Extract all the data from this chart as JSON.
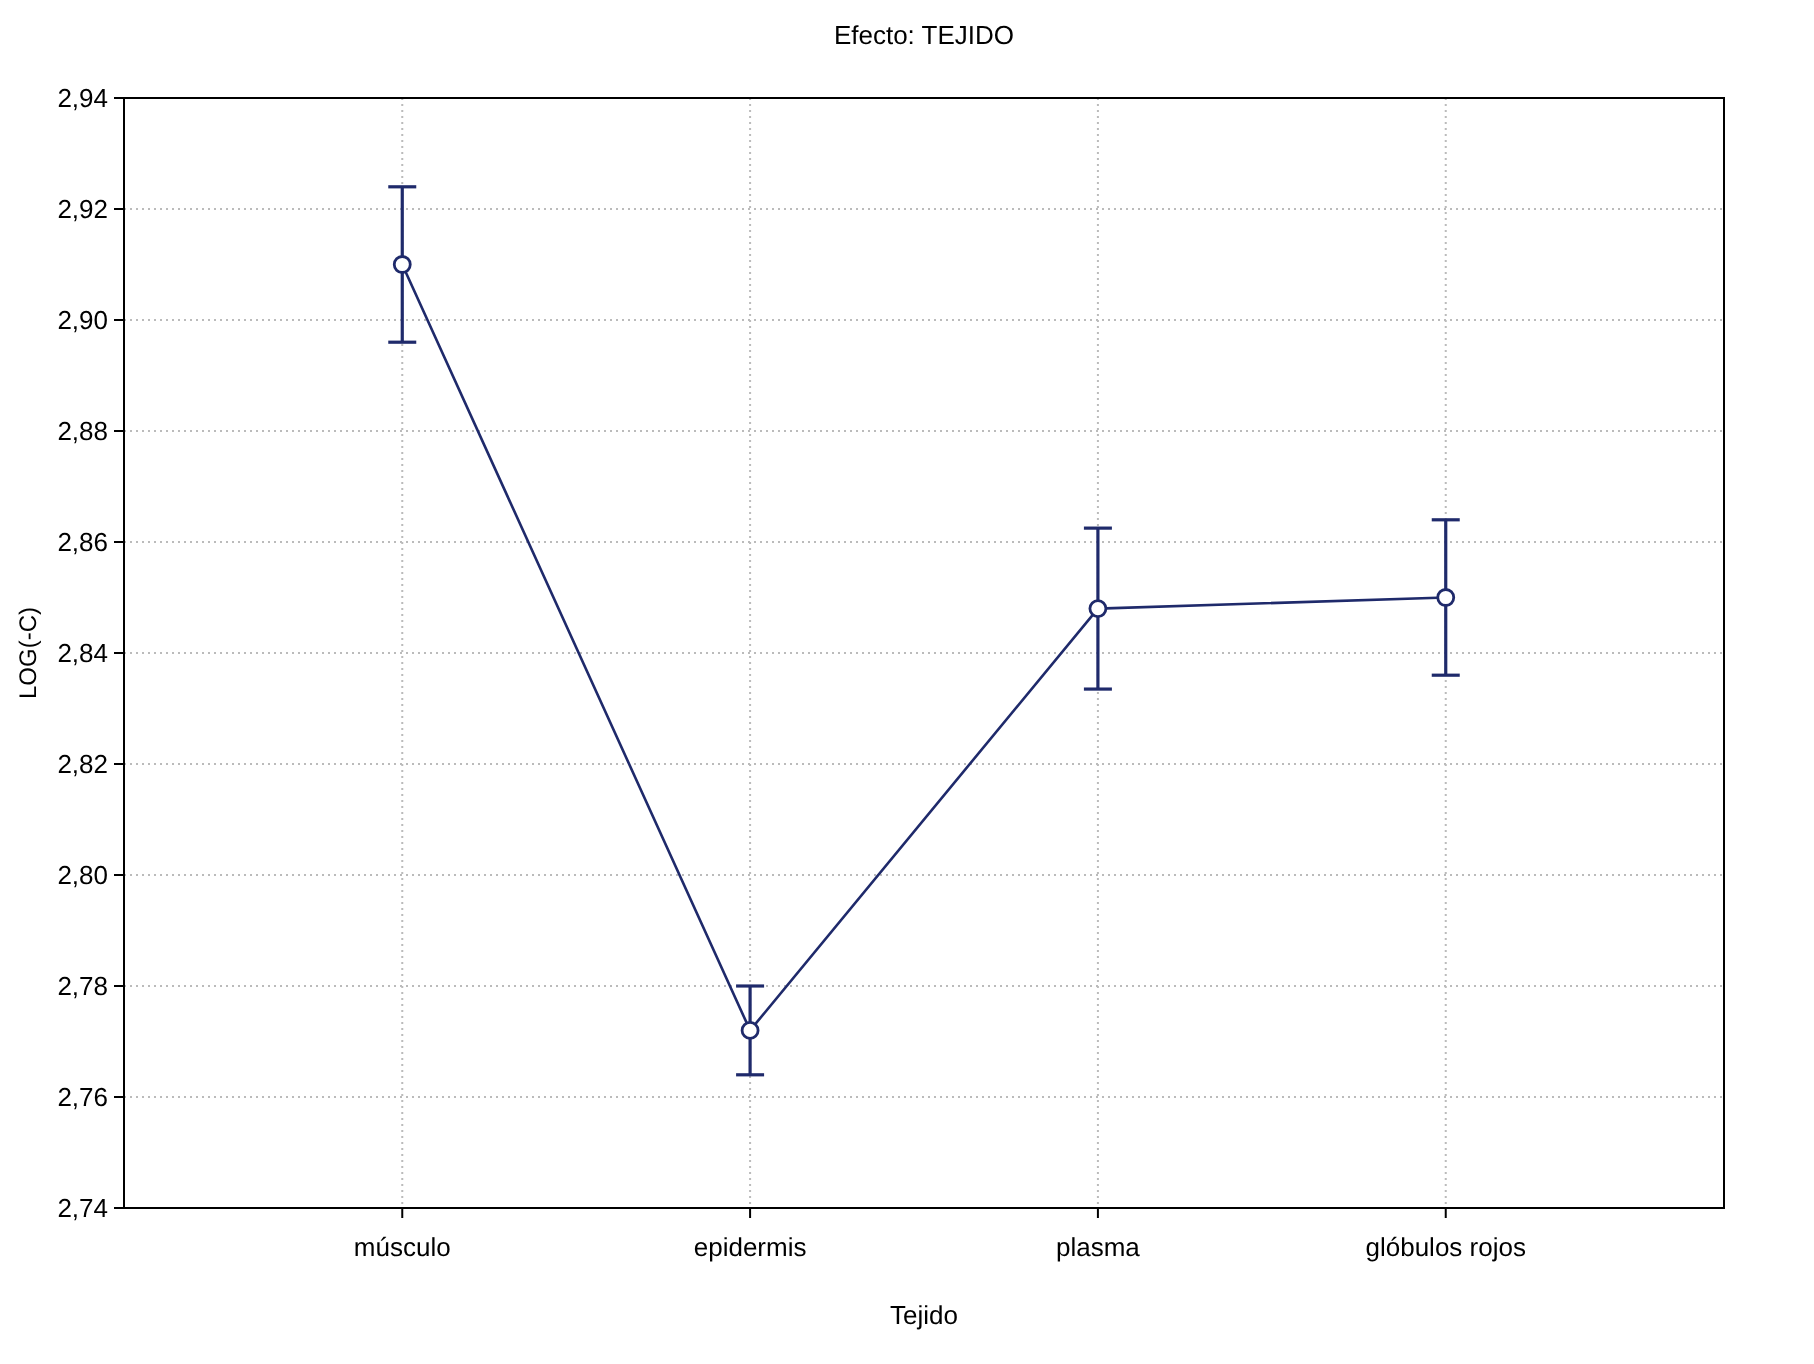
{
  "chart_data": {
    "type": "line",
    "title": "Efecto: TEJIDO",
    "xlabel": "Tejido",
    "ylabel": "LOG(-C)",
    "categories": [
      "músculo",
      "epidermis",
      "plasma",
      "glóbulos rojos"
    ],
    "series": [
      {
        "color": "#1f2a6b",
        "values": [
          2.91,
          2.772,
          2.848,
          2.85
        ],
        "errors": [
          0.014,
          0.008,
          0.0145,
          0.014
        ]
      }
    ],
    "ylim": [
      2.74,
      2.94
    ],
    "yticks": [
      {
        "value": 2.74,
        "label": "2,74"
      },
      {
        "value": 2.76,
        "label": "2,76"
      },
      {
        "value": 2.78,
        "label": "2,78"
      },
      {
        "value": 2.8,
        "label": "2,80"
      },
      {
        "value": 2.82,
        "label": "2,82"
      },
      {
        "value": 2.84,
        "label": "2,84"
      },
      {
        "value": 2.86,
        "label": "2,86"
      },
      {
        "value": 2.88,
        "label": "2,88"
      },
      {
        "value": 2.9,
        "label": "2,90"
      },
      {
        "value": 2.92,
        "label": "2,92"
      },
      {
        "value": 2.94,
        "label": "2,94"
      }
    ],
    "grid": true,
    "marker": "circle",
    "line_style": "solid"
  }
}
